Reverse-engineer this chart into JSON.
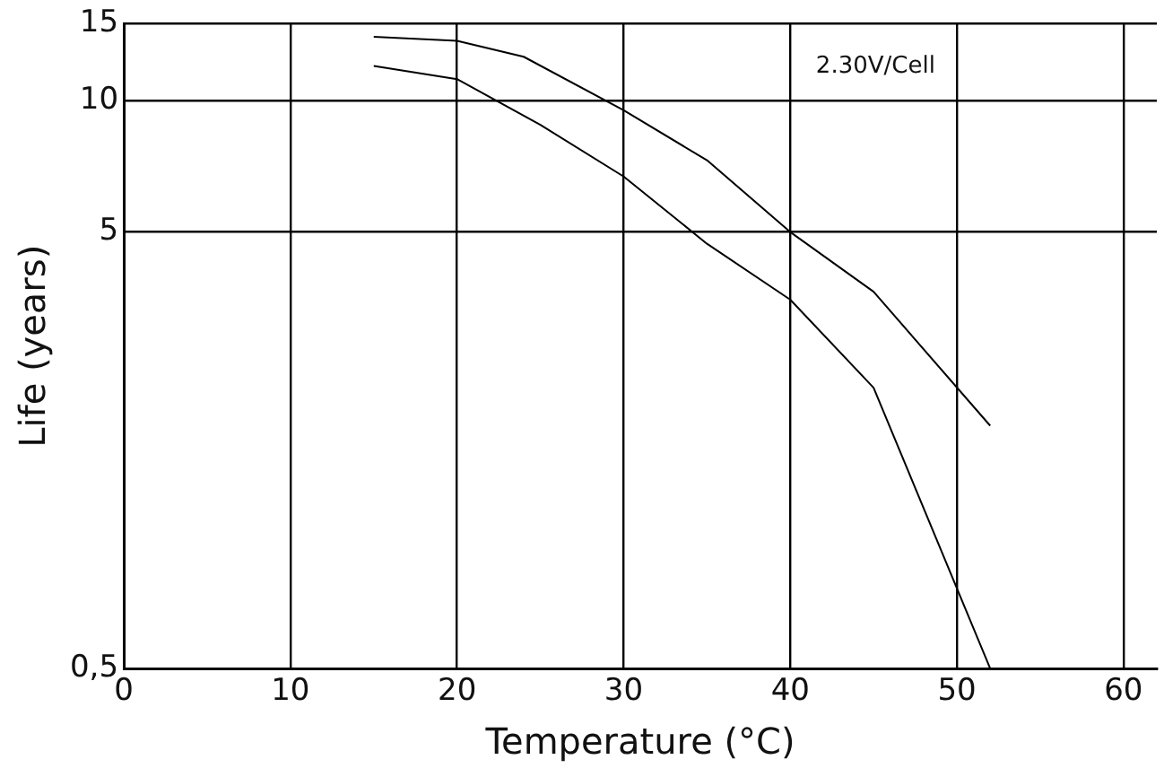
{
  "chart_data": {
    "type": "line",
    "xlabel": "Temperature (°C)",
    "ylabel": "Life (years)",
    "annotations": [
      "2.30V/Cell"
    ],
    "series": [
      {
        "color": "#000000",
        "x": [
          15,
          20,
          24,
          30,
          35,
          40,
          45,
          52
        ],
        "values": [
          14,
          13.7,
          12.6,
          9.5,
          7.3,
          5,
          3.65,
          1.8
        ]
      },
      {
        "color": "#000000",
        "x": [
          15,
          20,
          25,
          30,
          35,
          40,
          45,
          52
        ],
        "values": [
          12,
          11.2,
          8.8,
          6.7,
          4.7,
          3.5,
          2.2,
          0.5
        ]
      }
    ],
    "xlim": [
      0,
      62
    ],
    "xticks": [
      0,
      10,
      20,
      30,
      40,
      50,
      60
    ],
    "ylim": [
      0.5,
      15
    ],
    "yticks": [
      {
        "value": 0.5,
        "label": "0,5"
      },
      5,
      10,
      15
    ],
    "log": "y",
    "grid": true,
    "legend": false,
    "marker": "none",
    "line_style": "solid"
  }
}
